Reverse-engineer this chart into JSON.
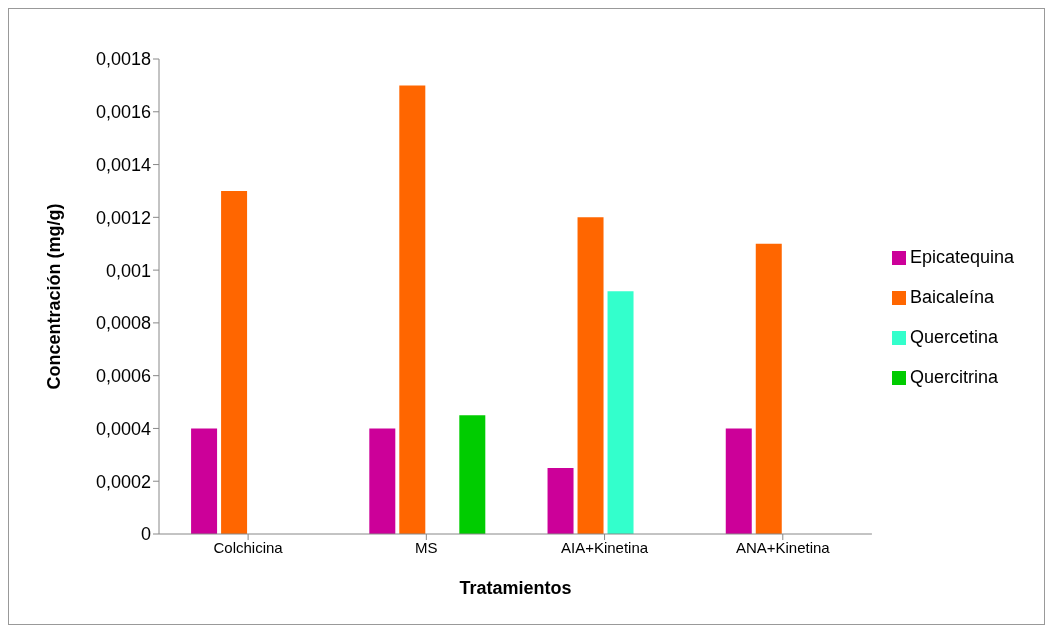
{
  "chart_data": {
    "type": "bar",
    "xlabel": "Tratamientos",
    "ylabel": "Concentración (mg/g)",
    "categories": [
      "Colchicina",
      "MS",
      "AIA+Kinetina",
      "ANA+Kinetina"
    ],
    "series": [
      {
        "name": "Epicatequina",
        "color": "#cc0099",
        "values": [
          0.0004,
          0.0004,
          0.00025,
          0.0004
        ]
      },
      {
        "name": "Baicaleína",
        "color": "#ff6600",
        "values": [
          0.0013,
          0.0017,
          0.0012,
          0.0011
        ]
      },
      {
        "name": "Quercetina",
        "color": "#33ffcc",
        "values": [
          0,
          0,
          0.00092,
          0
        ]
      },
      {
        "name": "Quercitrina",
        "color": "#00cc00",
        "values": [
          0,
          0.00045,
          0,
          0
        ]
      }
    ],
    "ylim": [
      0,
      0.0018
    ],
    "yticks": [
      {
        "value": 0,
        "label": "0"
      },
      {
        "value": 0.0002,
        "label": "0,0002"
      },
      {
        "value": 0.0004,
        "label": "0,0004"
      },
      {
        "value": 0.0006,
        "label": "0,0006"
      },
      {
        "value": 0.0008,
        "label": "0,0008"
      },
      {
        "value": 0.001,
        "label": "0,001"
      },
      {
        "value": 0.0012,
        "label": "0,0012"
      },
      {
        "value": 0.0014,
        "label": "0,0014"
      },
      {
        "value": 0.0016,
        "label": "0,0016"
      },
      {
        "value": 0.0018,
        "label": "0,0018"
      }
    ],
    "grid": false,
    "legend": "right"
  }
}
